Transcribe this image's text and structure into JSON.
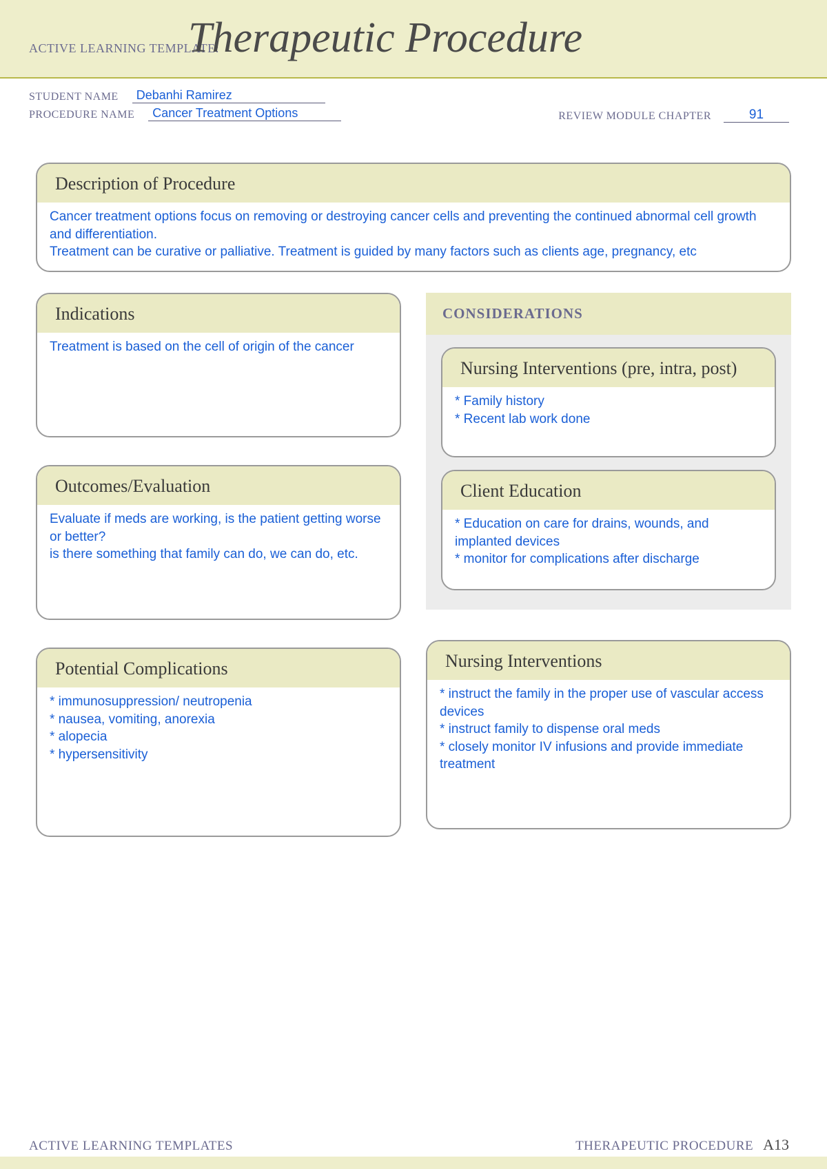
{
  "header": {
    "template_label": "ACTIVE LEARNING TEMPLATE:",
    "title": "Therapeutic Procedure"
  },
  "info": {
    "student_label": "STUDENT NAME",
    "student_value": "Debanhi Ramirez",
    "procedure_label": "PROCEDURE NAME",
    "procedure_value": "Cancer Treatment Options",
    "chapter_label": "REVIEW MODULE CHAPTER",
    "chapter_value": "91"
  },
  "boxes": {
    "description": {
      "title": "Description of Procedure",
      "body": "Cancer treatment options focus on removing or destroying cancer cells and preventing the continued abnormal cell growth and differentiation.\nTreatment can be curative or palliative. Treatment is guided by many factors such as clients age, pregnancy, etc"
    },
    "indications": {
      "title": "Indications",
      "body": "Treatment is based on the cell of origin of the cancer"
    },
    "outcomes": {
      "title": "Outcomes/Evaluation",
      "body": "Evaluate if meds are working, is the patient getting worse or better?\nis there something that family can do, we can do, etc."
    },
    "complications": {
      "title": "Potential Complications",
      "body": "* immunosuppression/ neutropenia\n* nausea, vomiting, anorexia\n* alopecia\n* hypersensitivity"
    },
    "considerations_label": "CONSIDERATIONS",
    "nursing_pre": {
      "title": "Nursing Interventions (pre, intra, post)",
      "body": "* Family history\n* Recent lab work done"
    },
    "client_ed": {
      "title": "Client Education",
      "body": " * Education on care for drains, wounds, and implanted devices\n* monitor for complications after discharge"
    },
    "nursing_int": {
      "title": "Nursing Interventions",
      "body": "* instruct the family in the proper use of vascular access devices\n* instruct family to dispense oral meds\n* closely monitor IV infusions and provide immediate treatment"
    }
  },
  "footer": {
    "left": "ACTIVE LEARNING TEMPLATES",
    "right": "THERAPEUTIC PROCEDURE",
    "page": "A13"
  },
  "colors": {
    "band": "#eeeecb",
    "box_header": "#eaeac4",
    "border": "#9a9a9a",
    "handwriting": "#1a5fd6",
    "label": "#6b6b8f",
    "considerations_bg": "#ececec"
  }
}
